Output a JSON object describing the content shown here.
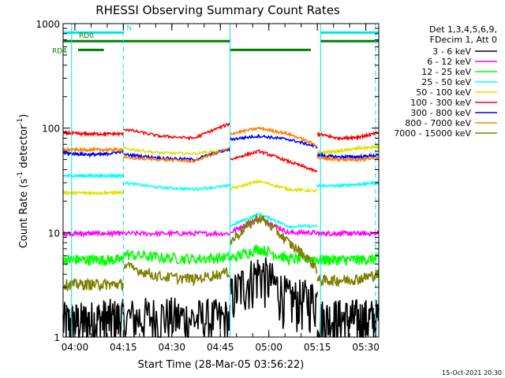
{
  "chart_data": {
    "type": "line",
    "title": "RHESSI Observing Summary Count Rates",
    "xlabel": "Start Time (28-Mar-05 03:56:22)",
    "ylabel": "Count Rate (s",
    "ylabel_sup": "-1",
    "ylabel_tail": " detector",
    "ylabel_close": ")",
    "x_unit": "UT time",
    "xlim": [
      "03:56:22",
      "05:34:00"
    ],
    "ylim": [
      1,
      1000
    ],
    "yscale": "log",
    "xticks": [
      "04:00",
      "04:15",
      "04:30",
      "04:45",
      "05:00",
      "05:15",
      "05:30"
    ],
    "yticks": [
      "1",
      "10",
      "100",
      "1000"
    ],
    "legend": {
      "header1": "Det 1,3,4,5,6,9,",
      "header2": "FDecim 1, Att 0",
      "placement": "right-outside"
    },
    "flags": [
      {
        "name": "N",
        "color": "#00e5e5",
        "ranges": [
          [
            "03:56:22",
            "04:15:00"
          ],
          [
            "05:16:00",
            "05:34:00"
          ]
        ],
        "y": 820
      },
      {
        "name": "RD0",
        "color": "#008000",
        "ranges": [
          [
            "03:56:22",
            "04:48:00"
          ],
          [
            "05:16:00",
            "05:34:00"
          ]
        ],
        "y": 680
      },
      {
        "name": "RD4",
        "color": "#008000",
        "ranges": [
          [
            "04:01:00",
            "04:09:00"
          ],
          [
            "04:48:00",
            "05:13:00"
          ]
        ],
        "y": 560
      }
    ],
    "markers": {
      "solid": [
        "03:59:00",
        "04:48:00",
        "05:16:00"
      ],
      "dashed": [
        "04:15:00",
        "05:33:00"
      ],
      "color": "#00e5e5"
    },
    "segments": [
      [
        "03:56:22",
        "04:15:00"
      ],
      [
        "04:15:00",
        "04:48:00"
      ],
      [
        "04:48:00",
        "05:15:00"
      ],
      [
        "05:15:00",
        "05:34:00"
      ]
    ],
    "series": [
      {
        "name": "3 - 6 keV",
        "color": "#000000",
        "noise": 0.55,
        "values": [
          [
            1.4,
            1.4,
            1.5,
            1.5
          ],
          [
            1.5,
            1.6,
            1.5,
            1.5
          ],
          [
            2.4,
            4.2,
            2.3,
            2.3
          ],
          [
            1.5,
            1.5,
            1.5,
            1.5
          ]
        ]
      },
      {
        "name": "6 - 12 keV",
        "color": "#ff00ff",
        "noise": 0.05,
        "values": [
          [
            9.8,
            9.8,
            9.8,
            9.8
          ],
          [
            9.8,
            9.8,
            9.8,
            9.8
          ],
          [
            10.0,
            13.5,
            10.0,
            10.0
          ],
          [
            9.8,
            9.8,
            9.8,
            9.8
          ]
        ]
      },
      {
        "name": "12 - 25 keV",
        "color": "#00ff00",
        "noise": 0.12,
        "values": [
          [
            5.5,
            5.5,
            5.5,
            5.5
          ],
          [
            6.2,
            5.8,
            5.6,
            5.8
          ],
          [
            5.6,
            7.0,
            5.6,
            5.6
          ],
          [
            5.5,
            5.5,
            5.5,
            5.6
          ]
        ]
      },
      {
        "name": "25 - 50 keV",
        "color": "#00ffff",
        "noise": 0.03,
        "values": [
          [
            35,
            35,
            35,
            35
          ],
          [
            30,
            27,
            26,
            28
          ],
          [
            11.5,
            15,
            11.5,
            11.5
          ],
          [
            28,
            28,
            29,
            30
          ]
        ]
      },
      {
        "name": "50 - 100 keV",
        "color": "#e0e000",
        "noise": 0.03,
        "values": [
          [
            24,
            24,
            24,
            24
          ],
          [
            64,
            58,
            57,
            62
          ],
          [
            26,
            31,
            26,
            25
          ],
          [
            58,
            60,
            64,
            66
          ]
        ]
      },
      {
        "name": "100 - 300 keV",
        "color": "#ff0000",
        "noise": 0.03,
        "values": [
          [
            90,
            88,
            88,
            88
          ],
          [
            98,
            84,
            80,
            110
          ],
          [
            50,
            60,
            48,
            38
          ],
          [
            88,
            80,
            82,
            90
          ]
        ]
      },
      {
        "name": "300 - 800 keV",
        "color": "#0000ff",
        "noise": 0.03,
        "values": [
          [
            58,
            56,
            56,
            60
          ],
          [
            56,
            52,
            50,
            63
          ],
          [
            78,
            84,
            78,
            66
          ],
          [
            55,
            53,
            53,
            55
          ]
        ]
      },
      {
        "name": "800 - 7000 keV",
        "color": "#ff8000",
        "noise": 0.03,
        "values": [
          [
            62,
            62,
            62,
            62
          ],
          [
            52,
            50,
            48,
            64
          ],
          [
            88,
            100,
            88,
            68
          ],
          [
            52,
            50,
            50,
            52
          ]
        ]
      },
      {
        "name": "7000 - 15000 keV",
        "color": "#808000",
        "noise": 0.12,
        "values": [
          [
            3.2,
            3.2,
            3.2,
            3.2
          ],
          [
            4.8,
            3.8,
            3.6,
            4.2
          ],
          [
            8.0,
            14.0,
            8.0,
            4.5
          ],
          [
            3.5,
            3.5,
            3.6,
            4.0
          ]
        ]
      }
    ],
    "stamp": "15-Oct-2021 20:30",
    "grid": false
  }
}
